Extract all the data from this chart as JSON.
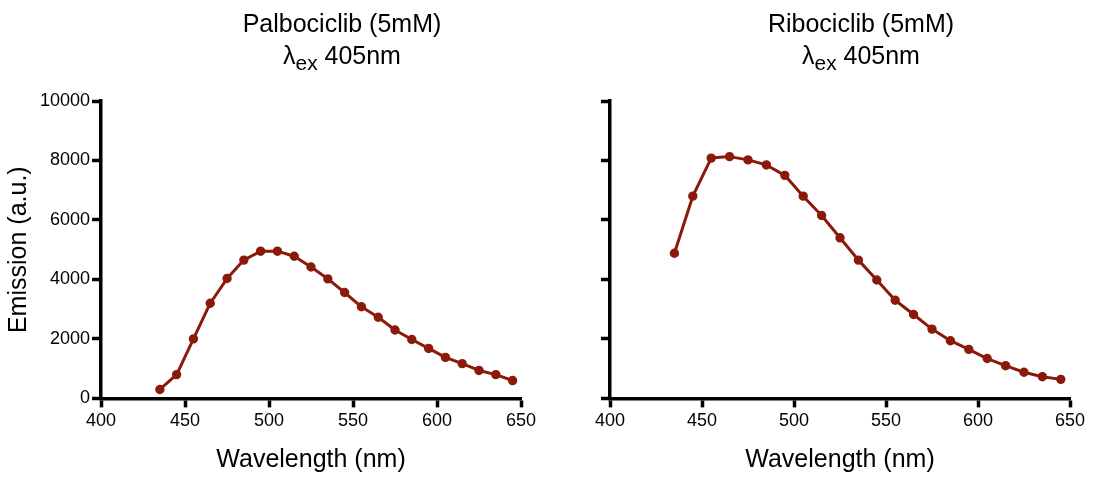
{
  "chart_data": [
    {
      "type": "line",
      "title": "Palbociclib (5mM)",
      "subtitle": "λ$_{ex}$ 405nm",
      "xlabel": "Wavelength (nm)",
      "ylabel": "Emission (a.u.)",
      "marker": "circle",
      "line_style": "solid",
      "grid": false,
      "legend": false,
      "x": [
        435,
        445,
        455,
        465,
        475,
        485,
        495,
        505,
        515,
        525,
        535,
        545,
        555,
        565,
        575,
        585,
        595,
        605,
        615,
        625,
        635,
        645
      ],
      "series": [
        {
          "color": "#8b1a0a",
          "values": [
            300,
            800,
            2000,
            3200,
            4030,
            4650,
            4950,
            4950,
            4780,
            4420,
            4020,
            3560,
            3080,
            2730,
            2300,
            1980,
            1680,
            1380,
            1170,
            940,
            800,
            600
          ]
        }
      ],
      "xlim": [
        400,
        650
      ],
      "xticks": [
        400,
        450,
        500,
        550,
        600,
        650
      ],
      "ylim": [
        0,
        10000
      ],
      "yticks": [
        0,
        2000,
        4000,
        6000,
        8000,
        10000
      ]
    },
    {
      "type": "line",
      "title": "Ribociclib (5mM)",
      "subtitle": "λ$_{ex}$ 405nm",
      "xlabel": "Wavelength (nm)",
      "marker": "circle",
      "line_style": "solid",
      "grid": false,
      "legend": false,
      "tick_labels": "x",
      "x": [
        435,
        445,
        455,
        465,
        475,
        485,
        495,
        505,
        515,
        525,
        535,
        545,
        555,
        565,
        575,
        585,
        595,
        605,
        615,
        625,
        635,
        645
      ],
      "series": [
        {
          "color": "#8b1a0a",
          "values": [
            4880,
            6800,
            8080,
            8130,
            8020,
            7850,
            7500,
            6800,
            6150,
            5400,
            4650,
            3980,
            3300,
            2820,
            2330,
            1940,
            1650,
            1340,
            1100,
            880,
            730,
            640
          ]
        }
      ],
      "xlim": [
        400,
        650
      ],
      "xticks": [
        400,
        450,
        500,
        550,
        600,
        650
      ],
      "ylim": [
        0,
        10000
      ],
      "yticks": [
        0,
        2000,
        4000,
        6000,
        8000,
        10000
      ]
    }
  ]
}
